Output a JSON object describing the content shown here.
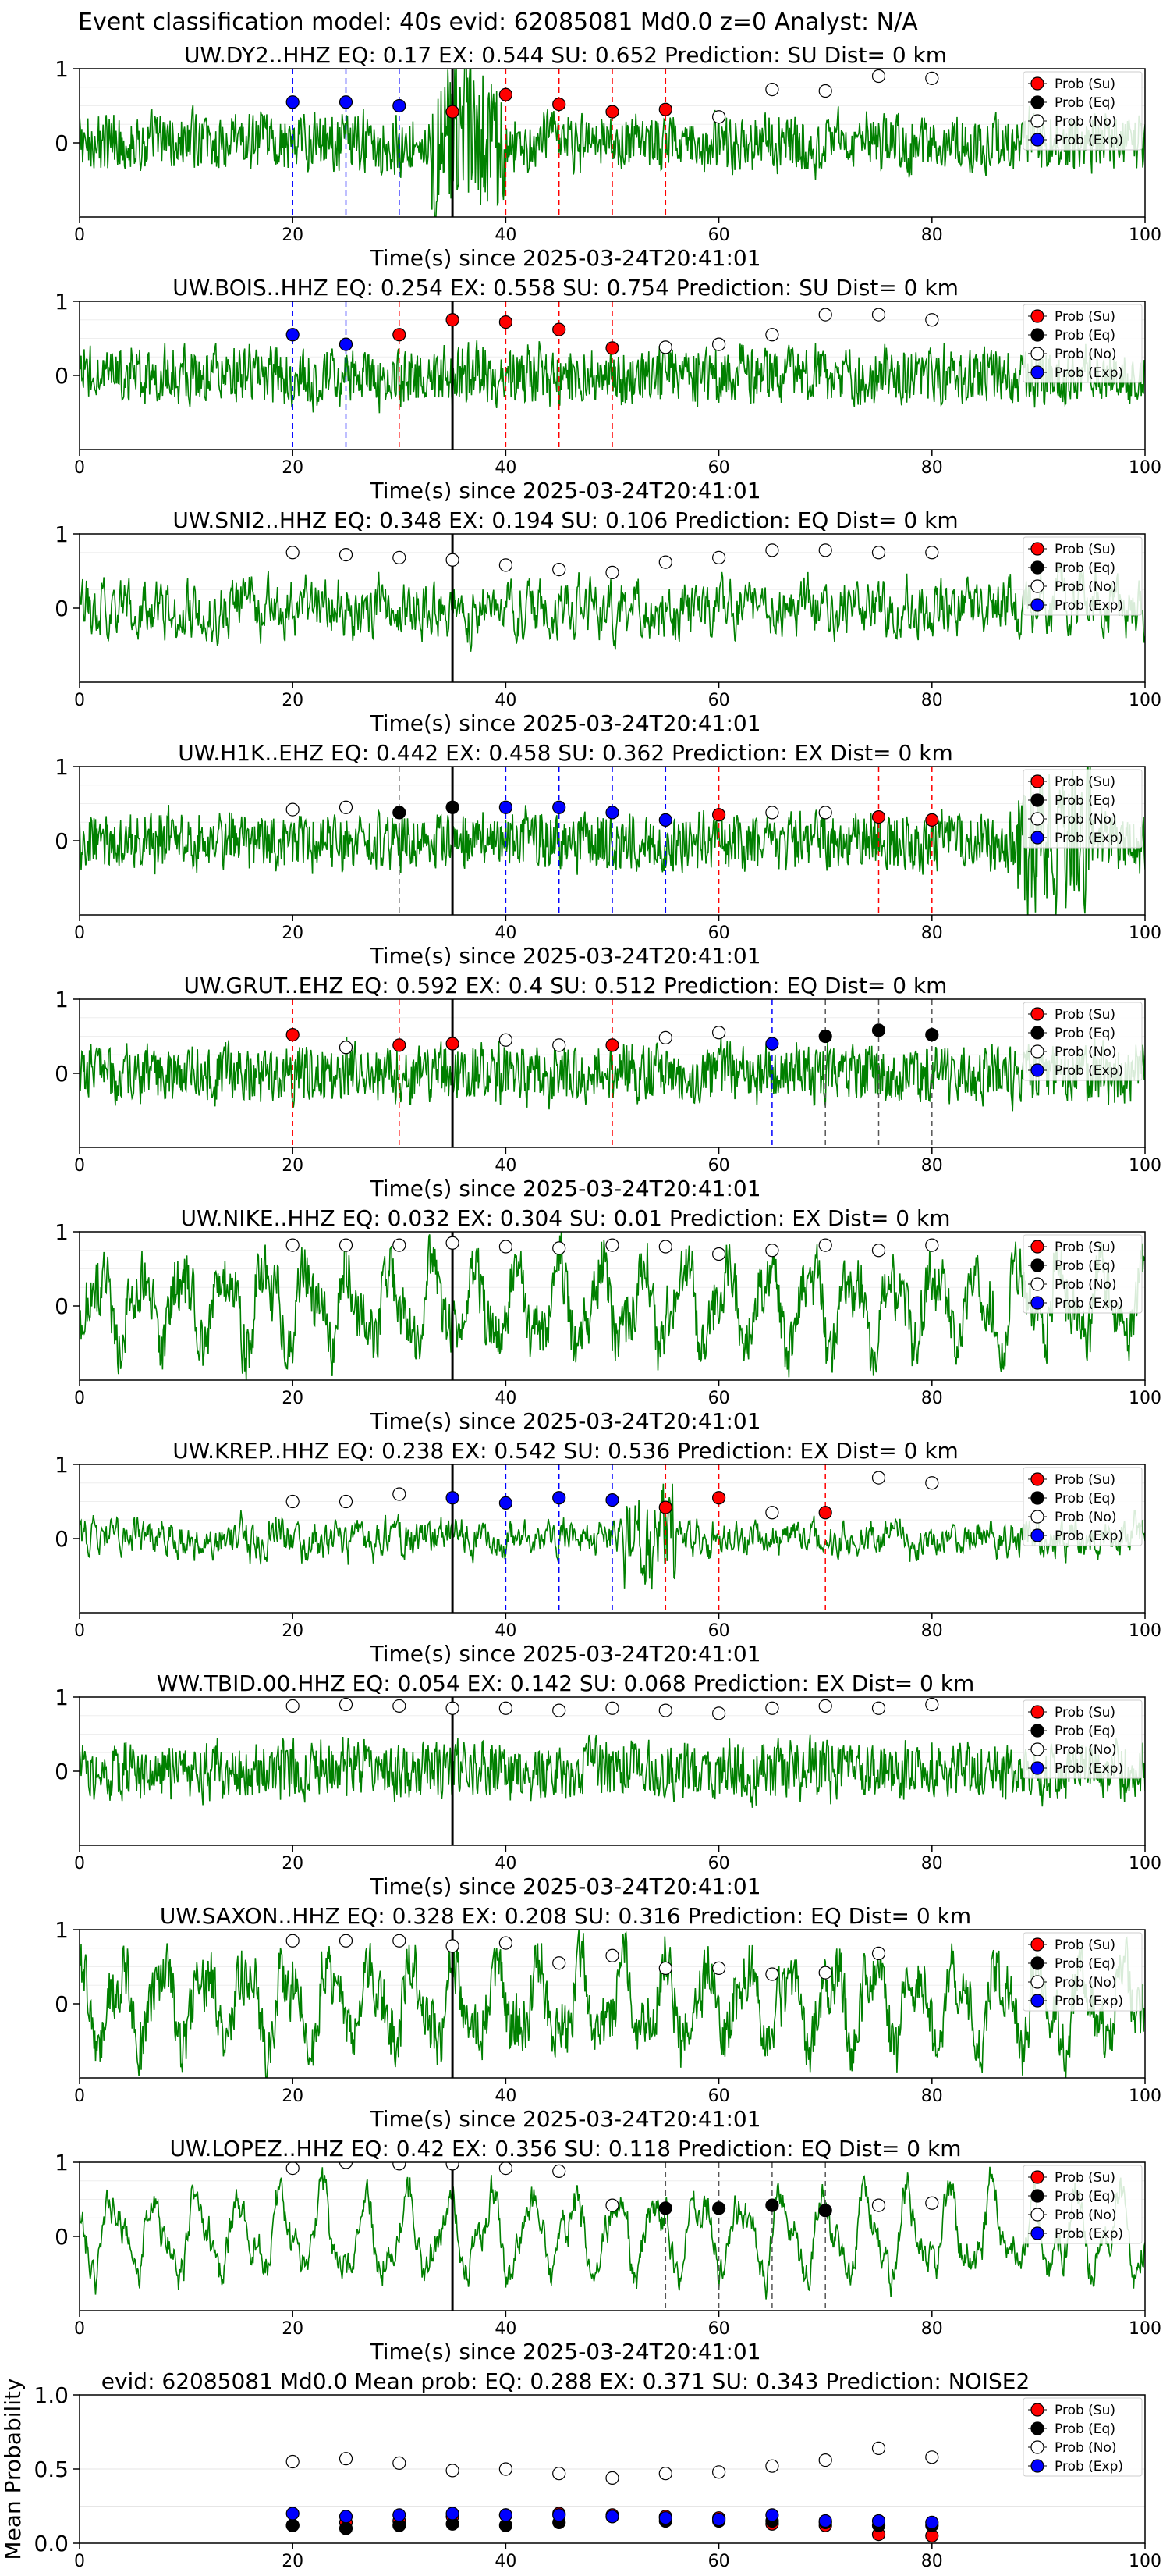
{
  "suptitle": "Event classification model: 40s evid: 62085081 Md0.0 z=0 Analyst: N/A",
  "colors": {
    "waveform": "#008000",
    "su": "#ff0000",
    "eq": "#000000",
    "exp": "#0000ff",
    "no_face": "#ffffff",
    "pick_line": "#000000"
  },
  "legend": [
    "Prob (Su)",
    "Prob (Eq)",
    "Prob (No)",
    "Prob (Exp)"
  ],
  "xlabel_common": "Time(s) since 2025-03-24T20:41:01",
  "x_ticks": [
    "0",
    "20",
    "40",
    "60",
    "80",
    "100"
  ],
  "y_ticks_panel": [
    "0",
    "1"
  ],
  "chart_data": [
    {
      "type": "line",
      "title": "UW.DY2..HHZ   EQ: 0.17  EX: 0.544  SU: 0.652   Prediction: SU    Dist= 0 km",
      "xlabel": "Time(s) since 2025-03-24T20:41:01",
      "xlim": [
        0,
        100
      ],
      "ylim": [
        -1,
        1
      ],
      "pick_time": 35,
      "probability_points": [
        {
          "t": 20,
          "class": "exp",
          "p": 0.55
        },
        {
          "t": 25,
          "class": "exp",
          "p": 0.55
        },
        {
          "t": 30,
          "class": "exp",
          "p": 0.5
        },
        {
          "t": 35,
          "class": "su",
          "p": 0.42
        },
        {
          "t": 40,
          "class": "su",
          "p": 0.65
        },
        {
          "t": 45,
          "class": "su",
          "p": 0.52
        },
        {
          "t": 50,
          "class": "su",
          "p": 0.42
        },
        {
          "t": 55,
          "class": "su",
          "p": 0.45
        },
        {
          "t": 60,
          "class": "no",
          "p": 0.35
        },
        {
          "t": 65,
          "class": "no",
          "p": 0.72
        },
        {
          "t": 70,
          "class": "no",
          "p": 0.7
        },
        {
          "t": 75,
          "class": "no",
          "p": 0.9
        },
        {
          "t": 80,
          "class": "no",
          "p": 0.87
        }
      ]
    },
    {
      "type": "line",
      "title": "UW.BOIS..HHZ   EQ: 0.254  EX: 0.558  SU: 0.754   Prediction: SU    Dist= 0 km",
      "xlabel": "Time(s) since 2025-03-24T20:41:01",
      "xlim": [
        0,
        100
      ],
      "ylim": [
        -1,
        1
      ],
      "pick_time": 35,
      "probability_points": [
        {
          "t": 20,
          "class": "exp",
          "p": 0.55
        },
        {
          "t": 25,
          "class": "exp",
          "p": 0.42
        },
        {
          "t": 30,
          "class": "su",
          "p": 0.55
        },
        {
          "t": 35,
          "class": "su",
          "p": 0.75
        },
        {
          "t": 40,
          "class": "su",
          "p": 0.72
        },
        {
          "t": 45,
          "class": "su",
          "p": 0.62
        },
        {
          "t": 50,
          "class": "su",
          "p": 0.37
        },
        {
          "t": 55,
          "class": "no",
          "p": 0.38
        },
        {
          "t": 60,
          "class": "no",
          "p": 0.42
        },
        {
          "t": 65,
          "class": "no",
          "p": 0.55
        },
        {
          "t": 70,
          "class": "no",
          "p": 0.82
        },
        {
          "t": 75,
          "class": "no",
          "p": 0.82
        },
        {
          "t": 80,
          "class": "no",
          "p": 0.75
        }
      ]
    },
    {
      "type": "line",
      "title": "UW.SNI2..HHZ   EQ: 0.348  EX: 0.194  SU: 0.106   Prediction: EQ    Dist= 0 km",
      "xlabel": "Time(s) since 2025-03-24T20:41:01",
      "xlim": [
        0,
        100
      ],
      "ylim": [
        -1,
        1
      ],
      "pick_time": 35,
      "probability_points": [
        {
          "t": 20,
          "class": "no",
          "p": 0.75
        },
        {
          "t": 25,
          "class": "no",
          "p": 0.72
        },
        {
          "t": 30,
          "class": "no",
          "p": 0.68
        },
        {
          "t": 35,
          "class": "no",
          "p": 0.65
        },
        {
          "t": 40,
          "class": "no",
          "p": 0.58
        },
        {
          "t": 45,
          "class": "no",
          "p": 0.52
        },
        {
          "t": 50,
          "class": "no",
          "p": 0.48
        },
        {
          "t": 55,
          "class": "no",
          "p": 0.62
        },
        {
          "t": 60,
          "class": "no",
          "p": 0.68
        },
        {
          "t": 65,
          "class": "no",
          "p": 0.78
        },
        {
          "t": 70,
          "class": "no",
          "p": 0.78
        },
        {
          "t": 75,
          "class": "no",
          "p": 0.75
        },
        {
          "t": 80,
          "class": "no",
          "p": 0.75
        }
      ]
    },
    {
      "type": "line",
      "title": "UW.H1K..EHZ   EQ: 0.442  EX: 0.458  SU: 0.362   Prediction: EX    Dist= 0 km",
      "xlabel": "Time(s) since 2025-03-24T20:41:01",
      "xlim": [
        0,
        100
      ],
      "ylim": [
        -1,
        1
      ],
      "pick_time": 35,
      "probability_points": [
        {
          "t": 20,
          "class": "no",
          "p": 0.42
        },
        {
          "t": 25,
          "class": "no",
          "p": 0.45
        },
        {
          "t": 30,
          "class": "eq",
          "p": 0.38
        },
        {
          "t": 35,
          "class": "eq",
          "p": 0.45
        },
        {
          "t": 40,
          "class": "exp",
          "p": 0.45
        },
        {
          "t": 45,
          "class": "exp",
          "p": 0.45
        },
        {
          "t": 50,
          "class": "exp",
          "p": 0.38
        },
        {
          "t": 55,
          "class": "exp",
          "p": 0.28
        },
        {
          "t": 60,
          "class": "su",
          "p": 0.35
        },
        {
          "t": 65,
          "class": "no",
          "p": 0.38
        },
        {
          "t": 70,
          "class": "no",
          "p": 0.38
        },
        {
          "t": 75,
          "class": "su",
          "p": 0.32
        },
        {
          "t": 80,
          "class": "su",
          "p": 0.28
        }
      ]
    },
    {
      "type": "line",
      "title": "UW.GRUT..EHZ   EQ: 0.592  EX: 0.4  SU: 0.512   Prediction: EQ    Dist= 0 km",
      "xlabel": "Time(s) since 2025-03-24T20:41:01",
      "xlim": [
        0,
        100
      ],
      "ylim": [
        -1,
        1
      ],
      "pick_time": 35,
      "probability_points": [
        {
          "t": 20,
          "class": "su",
          "p": 0.52
        },
        {
          "t": 25,
          "class": "no",
          "p": 0.35
        },
        {
          "t": 30,
          "class": "su",
          "p": 0.38
        },
        {
          "t": 35,
          "class": "su",
          "p": 0.4
        },
        {
          "t": 40,
          "class": "no",
          "p": 0.45
        },
        {
          "t": 45,
          "class": "no",
          "p": 0.38
        },
        {
          "t": 50,
          "class": "su",
          "p": 0.38
        },
        {
          "t": 55,
          "class": "no",
          "p": 0.48
        },
        {
          "t": 60,
          "class": "no",
          "p": 0.55
        },
        {
          "t": 65,
          "class": "exp",
          "p": 0.4
        },
        {
          "t": 70,
          "class": "eq",
          "p": 0.5
        },
        {
          "t": 75,
          "class": "eq",
          "p": 0.58
        },
        {
          "t": 80,
          "class": "eq",
          "p": 0.52
        }
      ]
    },
    {
      "type": "line",
      "title": "UW.NIKE..HHZ   EQ: 0.032  EX: 0.304  SU: 0.01   Prediction: EX    Dist= 0 km",
      "xlabel": "Time(s) since 2025-03-24T20:41:01",
      "xlim": [
        0,
        100
      ],
      "ylim": [
        -1,
        1
      ],
      "pick_time": 35,
      "probability_points": [
        {
          "t": 20,
          "class": "no",
          "p": 0.82
        },
        {
          "t": 25,
          "class": "no",
          "p": 0.82
        },
        {
          "t": 30,
          "class": "no",
          "p": 0.82
        },
        {
          "t": 35,
          "class": "no",
          "p": 0.85
        },
        {
          "t": 40,
          "class": "no",
          "p": 0.8
        },
        {
          "t": 45,
          "class": "no",
          "p": 0.78
        },
        {
          "t": 50,
          "class": "no",
          "p": 0.82
        },
        {
          "t": 55,
          "class": "no",
          "p": 0.8
        },
        {
          "t": 60,
          "class": "no",
          "p": 0.7
        },
        {
          "t": 65,
          "class": "no",
          "p": 0.75
        },
        {
          "t": 70,
          "class": "no",
          "p": 0.82
        },
        {
          "t": 75,
          "class": "no",
          "p": 0.75
        },
        {
          "t": 80,
          "class": "no",
          "p": 0.82
        }
      ]
    },
    {
      "type": "line",
      "title": "UW.KREP..HHZ   EQ: 0.238  EX: 0.542  SU: 0.536   Prediction: EX    Dist= 0 km",
      "xlabel": "Time(s) since 2025-03-24T20:41:01",
      "xlim": [
        0,
        100
      ],
      "ylim": [
        -1,
        1
      ],
      "pick_time": 35,
      "probability_points": [
        {
          "t": 20,
          "class": "no",
          "p": 0.5
        },
        {
          "t": 25,
          "class": "no",
          "p": 0.5
        },
        {
          "t": 30,
          "class": "no",
          "p": 0.6
        },
        {
          "t": 35,
          "class": "exp",
          "p": 0.55
        },
        {
          "t": 40,
          "class": "exp",
          "p": 0.48
        },
        {
          "t": 45,
          "class": "exp",
          "p": 0.55
        },
        {
          "t": 50,
          "class": "exp",
          "p": 0.52
        },
        {
          "t": 55,
          "class": "su",
          "p": 0.42
        },
        {
          "t": 60,
          "class": "su",
          "p": 0.55
        },
        {
          "t": 65,
          "class": "no",
          "p": 0.35
        },
        {
          "t": 70,
          "class": "su",
          "p": 0.35
        },
        {
          "t": 75,
          "class": "no",
          "p": 0.82
        },
        {
          "t": 80,
          "class": "no",
          "p": 0.75
        }
      ]
    },
    {
      "type": "line",
      "title": "WW.TBID.00.HHZ   EQ: 0.054  EX: 0.142  SU: 0.068   Prediction: EX    Dist= 0 km",
      "xlabel": "Time(s) since 2025-03-24T20:41:01",
      "xlim": [
        0,
        100
      ],
      "ylim": [
        -1,
        1
      ],
      "pick_time": 35,
      "probability_points": [
        {
          "t": 20,
          "class": "no",
          "p": 0.88
        },
        {
          "t": 25,
          "class": "no",
          "p": 0.9
        },
        {
          "t": 30,
          "class": "no",
          "p": 0.88
        },
        {
          "t": 35,
          "class": "no",
          "p": 0.85
        },
        {
          "t": 40,
          "class": "no",
          "p": 0.85
        },
        {
          "t": 45,
          "class": "no",
          "p": 0.82
        },
        {
          "t": 50,
          "class": "no",
          "p": 0.85
        },
        {
          "t": 55,
          "class": "no",
          "p": 0.82
        },
        {
          "t": 60,
          "class": "no",
          "p": 0.78
        },
        {
          "t": 65,
          "class": "no",
          "p": 0.85
        },
        {
          "t": 70,
          "class": "no",
          "p": 0.88
        },
        {
          "t": 75,
          "class": "no",
          "p": 0.85
        },
        {
          "t": 80,
          "class": "no",
          "p": 0.9
        }
      ]
    },
    {
      "type": "line",
      "title": "UW.SAXON..HHZ   EQ: 0.328  EX: 0.208  SU: 0.316   Prediction: EQ    Dist= 0 km",
      "xlabel": "Time(s) since 2025-03-24T20:41:01",
      "xlim": [
        0,
        100
      ],
      "ylim": [
        -1,
        1
      ],
      "pick_time": 35,
      "probability_points": [
        {
          "t": 20,
          "class": "no",
          "p": 0.85
        },
        {
          "t": 25,
          "class": "no",
          "p": 0.85
        },
        {
          "t": 30,
          "class": "no",
          "p": 0.85
        },
        {
          "t": 35,
          "class": "no",
          "p": 0.78
        },
        {
          "t": 40,
          "class": "no",
          "p": 0.82
        },
        {
          "t": 45,
          "class": "no",
          "p": 0.55
        },
        {
          "t": 50,
          "class": "no",
          "p": 0.65
        },
        {
          "t": 55,
          "class": "no",
          "p": 0.48
        },
        {
          "t": 60,
          "class": "no",
          "p": 0.48
        },
        {
          "t": 65,
          "class": "no",
          "p": 0.4
        },
        {
          "t": 70,
          "class": "no",
          "p": 0.42
        },
        {
          "t": 75,
          "class": "no",
          "p": 0.68
        }
      ]
    },
    {
      "type": "line",
      "title": "UW.LOPEZ..HHZ   EQ: 0.42  EX: 0.356  SU: 0.118   Prediction: EQ    Dist= 0 km",
      "xlabel": "Time(s) since 2025-03-24T20:41:01",
      "xlim": [
        0,
        100
      ],
      "ylim": [
        -1,
        1
      ],
      "pick_time": 35,
      "probability_points": [
        {
          "t": 20,
          "class": "no",
          "p": 0.92
        },
        {
          "t": 25,
          "class": "no",
          "p": 1.0
        },
        {
          "t": 30,
          "class": "no",
          "p": 0.98
        },
        {
          "t": 35,
          "class": "no",
          "p": 0.98
        },
        {
          "t": 40,
          "class": "no",
          "p": 0.92
        },
        {
          "t": 45,
          "class": "no",
          "p": 0.88
        },
        {
          "t": 50,
          "class": "no",
          "p": 0.42
        },
        {
          "t": 55,
          "class": "eq",
          "p": 0.38
        },
        {
          "t": 60,
          "class": "eq",
          "p": 0.38
        },
        {
          "t": 65,
          "class": "eq",
          "p": 0.42
        },
        {
          "t": 70,
          "class": "eq",
          "p": 0.35
        },
        {
          "t": 75,
          "class": "no",
          "p": 0.42
        },
        {
          "t": 80,
          "class": "no",
          "p": 0.45
        }
      ]
    },
    {
      "type": "scatter",
      "title": "evid: 62085081  Md0.0   Mean prob:   EQ: 0.288  EX: 0.371  SU: 0.343   Prediction: NOISE2",
      "xlabel": "",
      "ylabel": "Mean Probability",
      "xlim": [
        0,
        100
      ],
      "ylim": [
        0,
        1
      ],
      "y_ticks": [
        "0.0",
        "0.5",
        "1.0"
      ],
      "x": [
        20,
        25,
        30,
        35,
        40,
        45,
        50,
        55,
        60,
        65,
        70,
        75,
        80
      ],
      "series": [
        {
          "name": "Prob (Su)",
          "key": "su",
          "values": [
            0.12,
            0.14,
            0.15,
            0.18,
            0.19,
            0.2,
            0.19,
            0.18,
            0.17,
            0.13,
            0.12,
            0.06,
            0.05
          ]
        },
        {
          "name": "Prob (Eq)",
          "key": "eq",
          "values": [
            0.12,
            0.1,
            0.12,
            0.13,
            0.12,
            0.14,
            0.18,
            0.15,
            0.15,
            0.15,
            0.14,
            0.12,
            0.12
          ]
        },
        {
          "name": "Prob (No)",
          "key": "no",
          "values": [
            0.55,
            0.57,
            0.54,
            0.49,
            0.5,
            0.47,
            0.44,
            0.47,
            0.48,
            0.52,
            0.56,
            0.64,
            0.58
          ]
        },
        {
          "name": "Prob (Exp)",
          "key": "exp",
          "values": [
            0.2,
            0.18,
            0.19,
            0.2,
            0.19,
            0.19,
            0.18,
            0.17,
            0.16,
            0.19,
            0.15,
            0.15,
            0.14
          ]
        }
      ]
    }
  ]
}
